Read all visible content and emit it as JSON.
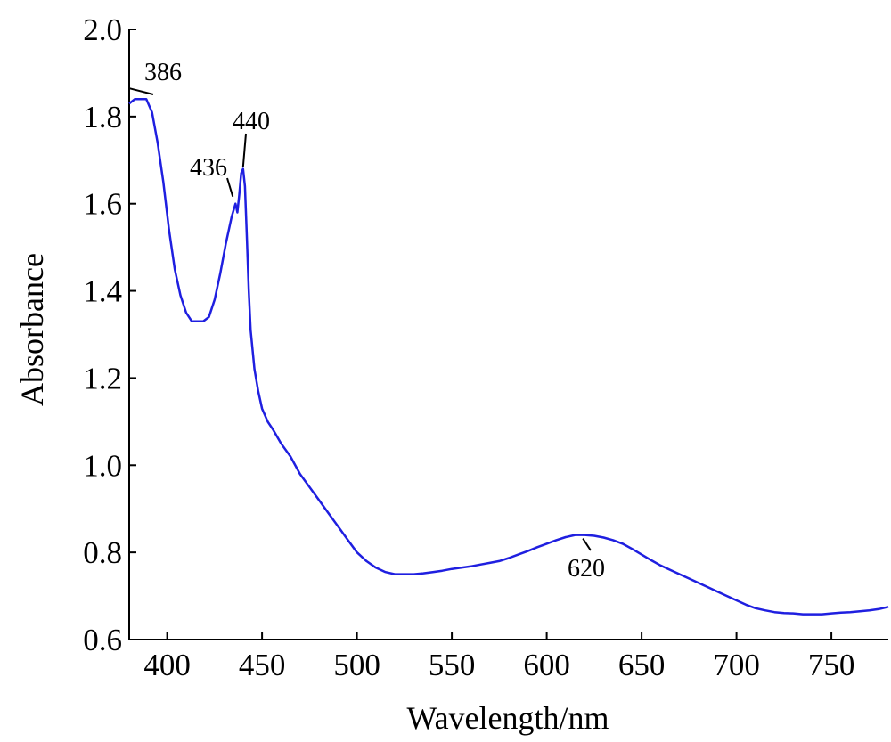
{
  "chart_data": {
    "type": "line",
    "title": "",
    "xlabel": "Wavelength/nm",
    "ylabel": "Absorbance",
    "xlim": [
      380,
      780
    ],
    "ylim": [
      0.6,
      2.0
    ],
    "x_ticks": [
      400,
      450,
      500,
      550,
      600,
      650,
      700,
      750
    ],
    "y_ticks": [
      "0.6",
      "0.8",
      "1.0",
      "1.2",
      "1.4",
      "1.6",
      "1.8",
      "2.0"
    ],
    "grid": false,
    "legend": "none",
    "line_color": "#1f1fe0",
    "series": [
      {
        "x": [
          380,
          383,
          386,
          389,
          392,
          395,
          398,
          401,
          404,
          407,
          410,
          413,
          416,
          419,
          422,
          425,
          428,
          431,
          434,
          436,
          437,
          438,
          439,
          440,
          441,
          442,
          443,
          444,
          446,
          448,
          450,
          453,
          456,
          460,
          465,
          470,
          475,
          480,
          485,
          490,
          495,
          500,
          505,
          510,
          515,
          520,
          525,
          530,
          535,
          540,
          545,
          550,
          555,
          560,
          565,
          570,
          575,
          580,
          585,
          590,
          595,
          600,
          605,
          610,
          615,
          620,
          625,
          630,
          635,
          640,
          645,
          650,
          655,
          660,
          665,
          670,
          675,
          680,
          685,
          690,
          695,
          700,
          705,
          710,
          715,
          720,
          725,
          730,
          735,
          740,
          745,
          750,
          755,
          760,
          765,
          770,
          775,
          780
        ],
        "y": [
          1.83,
          1.84,
          1.84,
          1.84,
          1.81,
          1.74,
          1.65,
          1.54,
          1.45,
          1.39,
          1.35,
          1.33,
          1.33,
          1.33,
          1.34,
          1.38,
          1.44,
          1.51,
          1.57,
          1.6,
          1.58,
          1.62,
          1.67,
          1.68,
          1.64,
          1.52,
          1.4,
          1.31,
          1.22,
          1.17,
          1.13,
          1.1,
          1.08,
          1.05,
          1.02,
          0.98,
          0.95,
          0.92,
          0.89,
          0.86,
          0.83,
          0.8,
          0.78,
          0.765,
          0.755,
          0.75,
          0.75,
          0.75,
          0.752,
          0.755,
          0.758,
          0.762,
          0.765,
          0.768,
          0.772,
          0.776,
          0.78,
          0.787,
          0.795,
          0.803,
          0.812,
          0.82,
          0.828,
          0.835,
          0.84,
          0.84,
          0.838,
          0.834,
          0.828,
          0.82,
          0.808,
          0.795,
          0.782,
          0.77,
          0.76,
          0.75,
          0.74,
          0.73,
          0.72,
          0.71,
          0.7,
          0.69,
          0.68,
          0.672,
          0.667,
          0.663,
          0.661,
          0.66,
          0.658,
          0.658,
          0.658,
          0.66,
          0.662,
          0.663,
          0.665,
          0.667,
          0.67,
          0.675
        ]
      }
    ],
    "annotations": [
      {
        "text": "386",
        "x": 386,
        "y": 1.84
      },
      {
        "text": "436",
        "x": 436,
        "y": 1.6
      },
      {
        "text": "440",
        "x": 440,
        "y": 1.68
      },
      {
        "text": "620",
        "x": 620,
        "y": 0.84
      }
    ]
  }
}
